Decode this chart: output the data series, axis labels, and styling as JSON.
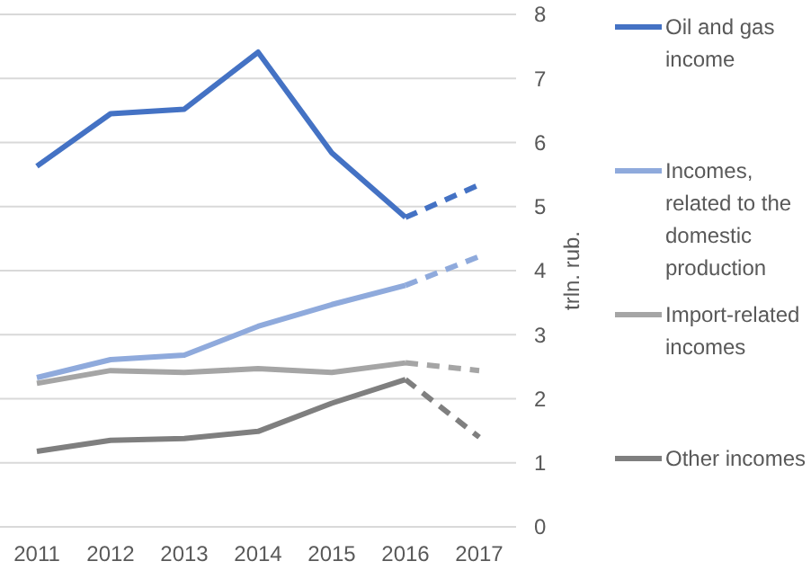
{
  "chart_data": {
    "type": "line",
    "ylabel": "trln. rub.",
    "categories": [
      "2011",
      "2012",
      "2013",
      "2014",
      "2015",
      "2016",
      "2017"
    ],
    "ylim": [
      0,
      8
    ],
    "yticks": [
      0,
      1,
      2,
      3,
      4,
      5,
      6,
      7,
      8
    ],
    "grid": "y",
    "legend": "right",
    "marker": "none",
    "series": [
      {
        "name": "Oil and gas income",
        "color": "#4472c4",
        "line_style": "solid",
        "values": [
          5.63,
          6.45,
          6.52,
          7.41,
          5.84,
          4.83,
          null
        ]
      },
      {
        "name": "Incomes, related to the domestic production",
        "color": "#8faadc",
        "line_style": "solid",
        "values": [
          2.33,
          2.61,
          2.68,
          3.13,
          3.47,
          3.77,
          null
        ]
      },
      {
        "name": "Import-related incomes",
        "color": "#a5a5a5",
        "line_style": "solid",
        "values": [
          2.24,
          2.44,
          2.41,
          2.47,
          2.41,
          2.56,
          null
        ]
      },
      {
        "name": "Other incomes",
        "color": "#7f7f7f",
        "line_style": "solid",
        "values": [
          1.18,
          1.35,
          1.38,
          1.49,
          1.93,
          2.3,
          null
        ]
      },
      {
        "color": "#4472c4",
        "line_style": "dashed",
        "values": [
          null,
          null,
          null,
          null,
          null,
          4.83,
          5.34
        ]
      },
      {
        "color": "#8faadc",
        "line_style": "dashed",
        "values": [
          null,
          null,
          null,
          null,
          null,
          3.77,
          4.22
        ]
      },
      {
        "color": "#a5a5a5",
        "line_style": "dashed",
        "values": [
          null,
          null,
          null,
          null,
          null,
          2.56,
          2.44
        ]
      },
      {
        "color": "#7f7f7f",
        "line_style": "dashed",
        "values": [
          null,
          null,
          null,
          null,
          null,
          2.3,
          1.4
        ]
      }
    ]
  }
}
